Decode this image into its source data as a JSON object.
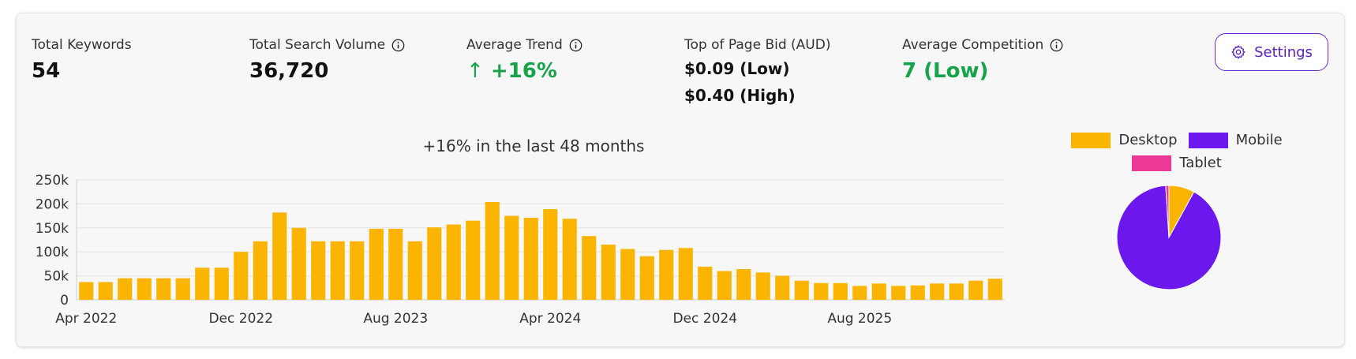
{
  "stats": {
    "total_keywords": {
      "label": "Total Keywords",
      "value": "54"
    },
    "total_search_volume": {
      "label": "Total Search Volume",
      "value": "36,720"
    },
    "average_trend": {
      "label": "Average Trend",
      "arrow": "↑",
      "value": "+16%"
    },
    "top_of_page_bid": {
      "label": "Top of Page Bid (AUD)",
      "low": "$0.09 (Low)",
      "high": "$0.40 (High)"
    },
    "average_competition": {
      "label": "Average Competition",
      "value": "7 (Low)"
    }
  },
  "settings": {
    "label": "Settings"
  },
  "colors": {
    "accent": "#6d28d9",
    "positive": "#16a34a",
    "bar": "#fbb500",
    "desktop": "#fbb500",
    "mobile": "#6b17ee",
    "tablet": "#ee3896"
  },
  "chart_data": [
    {
      "type": "bar",
      "title": "+16% in the last 48 months",
      "xlabel": "",
      "ylabel": "",
      "ylim": [
        0,
        250000
      ],
      "yticks": [
        "0",
        "50k",
        "100k",
        "150k",
        "200k",
        "250k"
      ],
      "grid": true,
      "x_tick_labels": [
        "Apr 2022",
        "Dec 2022",
        "Aug 2023",
        "Apr 2024",
        "Dec 2024",
        "Aug 2025"
      ],
      "categories": [
        "Apr 2022",
        "May 2022",
        "Jun 2022",
        "Jul 2022",
        "Aug 2022",
        "Sep 2022",
        "Oct 2022",
        "Nov 2022",
        "Dec 2022",
        "Jan 2023",
        "Feb 2023",
        "Mar 2023",
        "Apr 2023",
        "May 2023",
        "Jun 2023",
        "Jul 2023",
        "Aug 2023",
        "Sep 2023",
        "Oct 2023",
        "Nov 2023",
        "Dec 2023",
        "Jan 2024",
        "Feb 2024",
        "Mar 2024",
        "Apr 2024",
        "May 2024",
        "Jun 2024",
        "Jul 2024",
        "Aug 2024",
        "Sep 2024",
        "Oct 2024",
        "Nov 2024",
        "Dec 2024",
        "Jan 2025",
        "Feb 2025",
        "Mar 2025",
        "Apr 2025",
        "May 2025",
        "Jun 2025",
        "Jul 2025",
        "Aug 2025",
        "Sep 2025",
        "Oct 2025",
        "Nov 2025",
        "Dec 2025",
        "Jan 2026",
        "Feb 2026",
        "Mar 2026"
      ],
      "values": [
        37000,
        37000,
        45000,
        45000,
        45000,
        45000,
        67000,
        67000,
        100000,
        122000,
        182000,
        150000,
        122000,
        122000,
        122000,
        148000,
        148000,
        122000,
        151000,
        157000,
        165000,
        204000,
        175000,
        171000,
        189000,
        169000,
        133000,
        115000,
        106000,
        91000,
        104000,
        108000,
        69000,
        60000,
        64000,
        57000,
        50000,
        40000,
        35000,
        35000,
        29000,
        34000,
        29000,
        30000,
        34000,
        34000,
        40000,
        44000
      ]
    },
    {
      "type": "pie",
      "legend": [
        "Desktop",
        "Mobile",
        "Tablet"
      ],
      "legend_position": "top",
      "values": [
        0.08,
        0.91,
        0.01
      ]
    }
  ]
}
